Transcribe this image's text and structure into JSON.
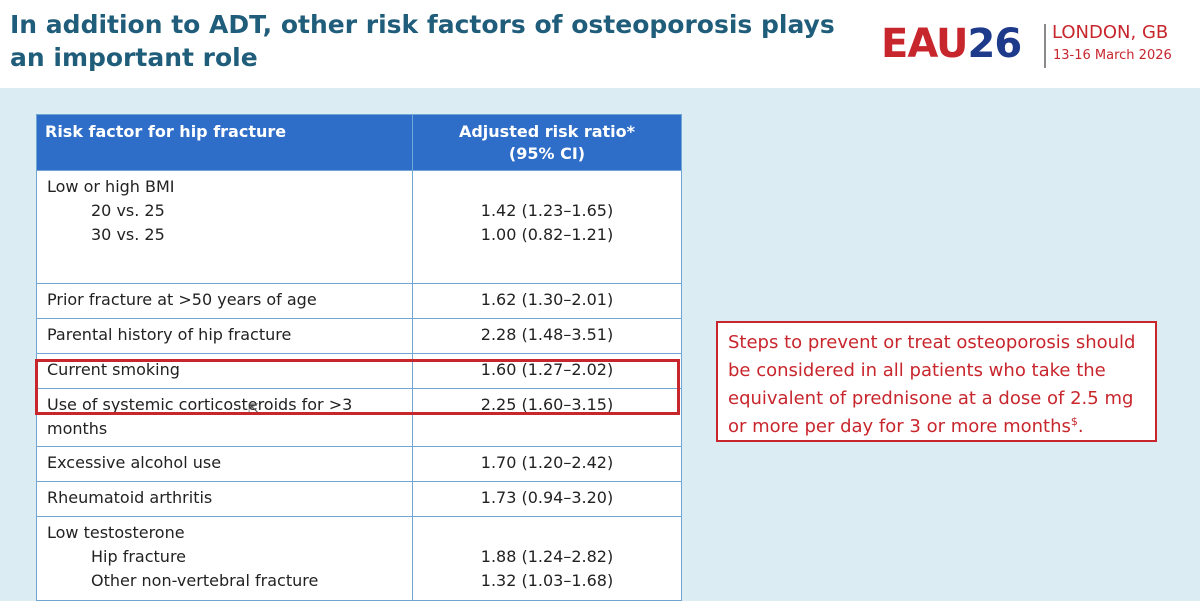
{
  "slide": {
    "title": "In addition to ADT, other risk factors of osteoporosis plays an important role"
  },
  "logo": {
    "eau": "EAU",
    "num": "26",
    "city": "LONDON, GB",
    "date": "13-16 March 2026"
  },
  "table": {
    "headers": [
      "Risk factor for hip fracture",
      "Adjusted risk ratio*",
      "(95% CI)"
    ],
    "rows": [
      {
        "label": "Low or high BMI",
        "sub": [
          {
            "label": "20 vs. 25",
            "value": "1.42 (1.23–1.65)"
          },
          {
            "label": "30 vs. 25",
            "value": "1.00 (0.82–1.21)"
          }
        ]
      },
      {
        "label": "Prior fracture at >50 years of age",
        "value": "1.62 (1.30–2.01)"
      },
      {
        "label": "Parental history of hip fracture",
        "value": "2.28 (1.48–3.51)"
      },
      {
        "label": "Current smoking",
        "value": "1.60 (1.27–2.02)"
      },
      {
        "label": "Use of systemic corticosteroids for >3 months",
        "value": "2.25 (1.60–3.15)"
      },
      {
        "label": "Excessive alcohol use",
        "value": "1.70 (1.20–2.42)"
      },
      {
        "label": "Rheumatoid arthritis",
        "value": "1.73 (0.94–3.20)"
      },
      {
        "label": "Low testosterone",
        "sub": [
          {
            "label": "Hip fracture",
            "value": "1.88 (1.24–2.82)"
          },
          {
            "label": "Other non-vertebral fracture",
            "value": "1.32 (1.03–1.68)"
          }
        ]
      }
    ]
  },
  "callout": {
    "text": "Steps to prevent or treat osteoporosis should be considered in all patients who take the equivalent of prednisone at a dose of 2.5 mg or more per day for 3 or more months",
    "sup": "$",
    "tail": "."
  },
  "colors": {
    "title": "#1f5d7a",
    "header_fill": "#2f6ec8",
    "highlight": "#c8262d",
    "background": "#dbecf2"
  }
}
